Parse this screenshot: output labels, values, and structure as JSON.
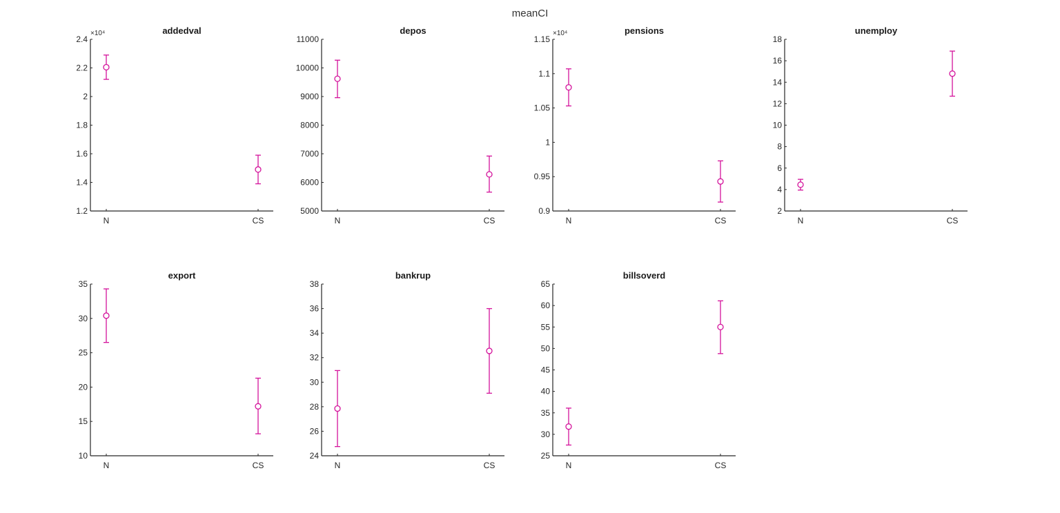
{
  "figure": {
    "title": "meanCI",
    "marker_color": "#d4129b",
    "axis_color": "#262626",
    "text_color": "#262626"
  },
  "chart_data": [
    {
      "type": "errorbar",
      "title": "addedval",
      "categories": [
        "N",
        "CS"
      ],
      "exponent_label": "×10⁴",
      "ylim": [
        1.2,
        2.4
      ],
      "yticks": [
        1.2,
        1.4,
        1.6,
        1.8,
        2,
        2.2,
        2.4
      ],
      "ytick_labels": [
        "1.2",
        "1.4",
        "1.6",
        "1.8",
        "2",
        "2.2",
        "2.4"
      ],
      "series": [
        {
          "name": "mean",
          "values": [
            2.205,
            1.49
          ]
        }
      ],
      "ci_lower": [
        2.12,
        1.39
      ],
      "ci_upper": [
        2.29,
        1.59
      ],
      "scale": 10000
    },
    {
      "type": "errorbar",
      "title": "depos",
      "categories": [
        "N",
        "CS"
      ],
      "exponent_label": "",
      "ylim": [
        5000,
        11000
      ],
      "yticks": [
        5000,
        6000,
        7000,
        8000,
        9000,
        10000,
        11000
      ],
      "ytick_labels": [
        "5000",
        "6000",
        "7000",
        "8000",
        "9000",
        "10000",
        "11000"
      ],
      "series": [
        {
          "name": "mean",
          "values": [
            9620,
            6280
          ]
        }
      ],
      "ci_lower": [
        8960,
        5660
      ],
      "ci_upper": [
        10270,
        6920
      ]
    },
    {
      "type": "errorbar",
      "title": "pensions",
      "categories": [
        "N",
        "CS"
      ],
      "exponent_label": "×10⁴",
      "ylim": [
        0.9,
        1.15
      ],
      "yticks": [
        0.9,
        0.95,
        1,
        1.05,
        1.1,
        1.15
      ],
      "ytick_labels": [
        "0.9",
        "0.95",
        "1",
        "1.05",
        "1.1",
        "1.15"
      ],
      "series": [
        {
          "name": "mean",
          "values": [
            1.08,
            0.943
          ]
        }
      ],
      "ci_lower": [
        1.053,
        0.913
      ],
      "ci_upper": [
        1.107,
        0.973
      ],
      "scale": 10000
    },
    {
      "type": "errorbar",
      "title": "unemploy",
      "categories": [
        "N",
        "CS"
      ],
      "exponent_label": "",
      "ylim": [
        2,
        18
      ],
      "yticks": [
        2,
        4,
        6,
        8,
        10,
        12,
        14,
        16,
        18
      ],
      "ytick_labels": [
        "2",
        "4",
        "6",
        "8",
        "10",
        "12",
        "14",
        "16",
        "18"
      ],
      "series": [
        {
          "name": "mean",
          "values": [
            4.45,
            14.8
          ]
        }
      ],
      "ci_lower": [
        3.95,
        12.7
      ],
      "ci_upper": [
        4.95,
        16.9
      ]
    },
    {
      "type": "errorbar",
      "title": "export",
      "categories": [
        "N",
        "CS"
      ],
      "exponent_label": "",
      "ylim": [
        10,
        35
      ],
      "yticks": [
        10,
        15,
        20,
        25,
        30,
        35
      ],
      "ytick_labels": [
        "10",
        "15",
        "20",
        "25",
        "30",
        "35"
      ],
      "series": [
        {
          "name": "mean",
          "values": [
            30.4,
            17.2
          ]
        }
      ],
      "ci_lower": [
        26.5,
        13.2
      ],
      "ci_upper": [
        34.3,
        21.3
      ]
    },
    {
      "type": "errorbar",
      "title": "bankrup",
      "categories": [
        "N",
        "CS"
      ],
      "exponent_label": "",
      "ylim": [
        24,
        38
      ],
      "yticks": [
        24,
        26,
        28,
        30,
        32,
        34,
        36,
        38
      ],
      "ytick_labels": [
        "24",
        "26",
        "28",
        "30",
        "32",
        "34",
        "36",
        "38"
      ],
      "series": [
        {
          "name": "mean",
          "values": [
            27.85,
            32.55
          ]
        }
      ],
      "ci_lower": [
        24.75,
        29.1
      ],
      "ci_upper": [
        30.95,
        36.0
      ]
    },
    {
      "type": "errorbar",
      "title": "billsoverd",
      "categories": [
        "N",
        "CS"
      ],
      "exponent_label": "",
      "ylim": [
        25,
        65
      ],
      "yticks": [
        25,
        30,
        35,
        40,
        45,
        50,
        55,
        60,
        65
      ],
      "ytick_labels": [
        "25",
        "30",
        "35",
        "40",
        "45",
        "50",
        "55",
        "60",
        "65"
      ],
      "series": [
        {
          "name": "mean",
          "values": [
            31.8,
            55.0
          ]
        }
      ],
      "ci_lower": [
        27.5,
        48.8
      ],
      "ci_upper": [
        36.1,
        61.1
      ]
    }
  ]
}
